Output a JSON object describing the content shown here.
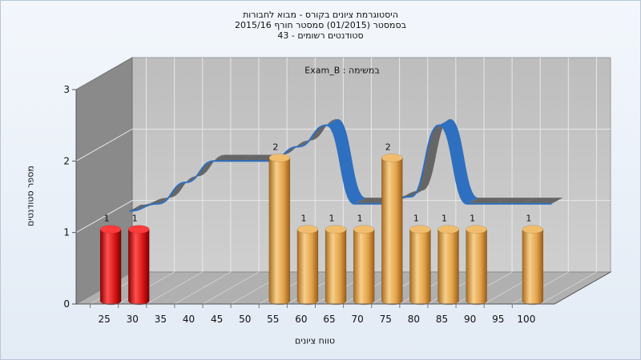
{
  "chart_data": {
    "type": "bar",
    "title_lines": [
      "היסטוגרמת ציונים בקורס - מבוא לחבורות",
      "בסמסטר  (01/2015)  סמסטר חורף 2015/16",
      "סטודנטים רשומים - 43"
    ],
    "annotation": "במשימה : Exam_B",
    "xlabel": "טווח ציונים",
    "ylabel": "מספר סטודנטים",
    "categories": [
      "25",
      "30",
      "35",
      "40",
      "45",
      "50",
      "55",
      "60",
      "65",
      "70",
      "75",
      "80",
      "85",
      "90",
      "95",
      "100"
    ],
    "values": [
      1,
      1,
      0,
      0,
      0,
      0,
      2,
      1,
      1,
      1,
      2,
      1,
      1,
      1,
      0,
      1
    ],
    "data_labels": [
      "1",
      "1",
      "",
      "",
      "",
      "",
      "2",
      "1",
      "1",
      "1",
      "2",
      "1",
      "1",
      "1",
      "",
      "1"
    ],
    "bar_colors": [
      "#d81616",
      "#d81616",
      "#e0a54f",
      "#e0a54f",
      "#e0a54f",
      "#e0a54f",
      "#e0a54f",
      "#e0a54f",
      "#e0a54f",
      "#e0a54f",
      "#e0a54f",
      "#e0a54f",
      "#e0a54f",
      "#e0a54f",
      "#e0a54f",
      "#e0a54f"
    ],
    "curve_values": [
      1.1,
      1.2,
      1.5,
      1.8,
      1.8,
      1.8,
      2.0,
      2.3,
      1.2,
      1.2,
      1.3,
      2.3,
      1.2,
      1.2,
      1.2,
      1.2
    ],
    "yticks": [
      "0",
      "1",
      "2",
      "3"
    ],
    "ylim": [
      0,
      3
    ],
    "grid": true,
    "colors": {
      "curve_front": "#2f6fbf",
      "curve_back": "#666666",
      "back_wall": "#c4c4c4",
      "left_wall": "#8a8a8a",
      "floor": "#b0b0b0"
    }
  }
}
